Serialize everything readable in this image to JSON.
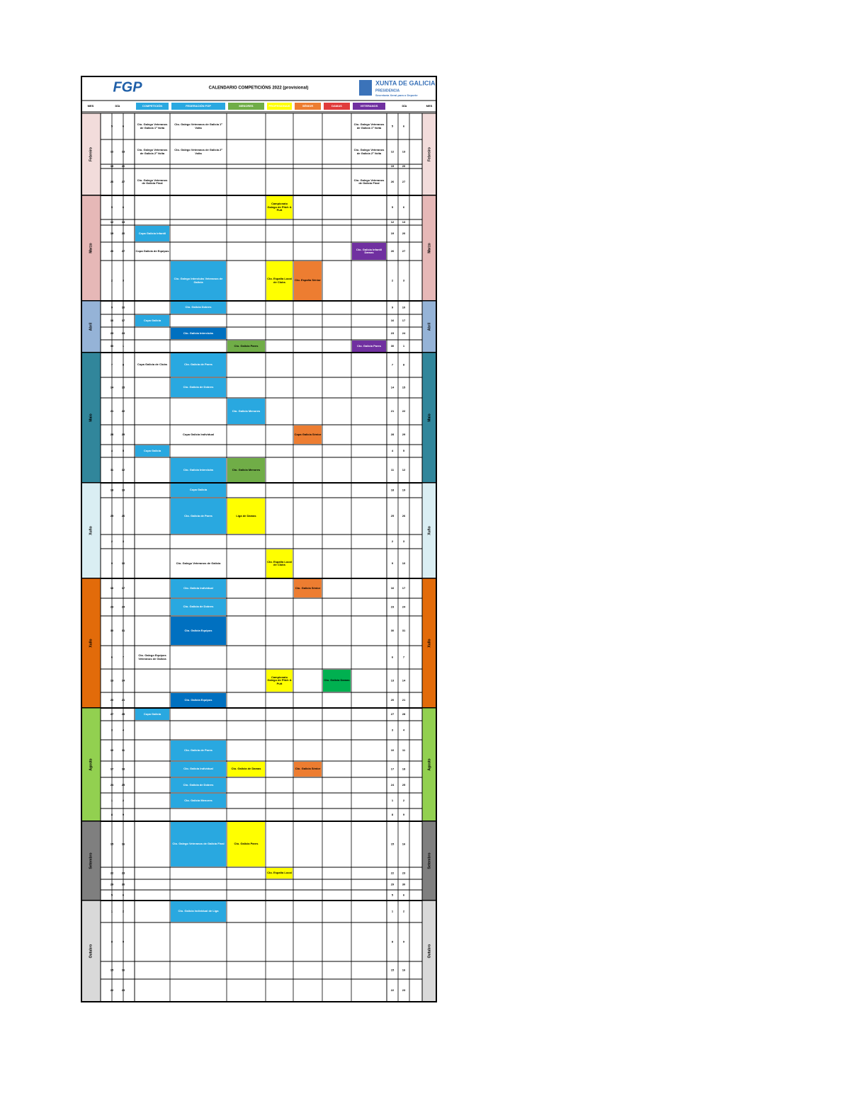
{
  "header": {
    "logo": "FGP",
    "title": "CALENDARIO COMPETICIÓNS 2022 (provisional)",
    "org": "XUNTA DE GALICIA",
    "org_sub": "PRESIDENCIA",
    "org_sub2": "Secretaría Xeral para o Deporte"
  },
  "columns": {
    "month": "MES",
    "days": "DÍA",
    "cols": [
      {
        "name": "COMPETICIÓN",
        "color": "#29a8e0"
      },
      {
        "name": "FEDERACIÓN FGP",
        "color": "#29a8e0"
      },
      {
        "name": "MENORES",
        "color": "#70ad47"
      },
      {
        "name": "PROFESIONAIS",
        "color": "#ffff00"
      },
      {
        "name": "SÉNIOR",
        "color": "#ed7d31"
      },
      {
        "name": "DAMAS",
        "color": "#e03c3c"
      },
      {
        "name": "VETERANOS",
        "color": "#7030a0"
      }
    ]
  },
  "months": [
    {
      "name": "Febreiro",
      "color": "#f2dcdb",
      "rows": [
        {
          "days": [
            "5",
            "6"
          ],
          "events": [
            {
              "col": 0,
              "text": "Cto. Galego Veteranos de Galicia 1ª Volta"
            },
            {
              "col": 1,
              "text": "Cto. Galego Veteranos de Galicia 1ª Volta"
            },
            {
              "col": 6,
              "text": "Cto. Galego Veteranos de Galicia 1ª Volta"
            }
          ]
        },
        {
          "days": [
            "12",
            "13"
          ],
          "events": [
            {
              "col": 0,
              "text": "Cto. Galego Veteranos de Galicia 2ª Volta"
            },
            {
              "col": 1,
              "text": "Cto. Galego Veteranos de Galicia 2ª Volta"
            },
            {
              "col": 6,
              "text": "Cto. Galego Veteranos de Galicia 2ª Volta"
            }
          ]
        },
        {
          "days": [
            "19",
            "20"
          ],
          "events": []
        },
        {
          "days": [
            "26",
            "27"
          ],
          "events": [
            {
              "col": 0,
              "text": "Cto. Galego Veteranos de Galicia Final"
            },
            {
              "col": 6,
              "text": "Cto. Galego Veteranos de Galicia Final"
            }
          ]
        }
      ]
    },
    {
      "name": "Marzo",
      "color": "#e6b8b7",
      "rows": [
        {
          "days": [
            "5",
            "6"
          ],
          "events": [
            {
              "col": 3,
              "text": "Campionato Galego de Pitch & Putt",
              "color": "#ffff00"
            }
          ]
        },
        {
          "days": [
            "12",
            "13"
          ],
          "events": []
        },
        {
          "days": [
            "19",
            "20"
          ],
          "events": [
            {
              "col": 0,
              "text": "Copa Galicia Infantil",
              "color": "#29a8e0"
            }
          ]
        },
        {
          "days": [
            "26",
            "27"
          ],
          "events": [
            {
              "col": 0,
              "text": "Copa Galicia de Equipos"
            },
            {
              "col": 6,
              "text": "Cto. Galicia Infantil Damas",
              "color": "#7030a0"
            }
          ]
        },
        {
          "days": [
            "2",
            "3"
          ],
          "events": [
            {
              "col": 1,
              "text": "Cto. Galego Interclubs Veteranos de Galicia",
              "color": "#29a8e0"
            },
            {
              "col": 3,
              "text": "Cto. España Local de Clubs",
              "color": "#ffff00"
            },
            {
              "col": 4,
              "text": "Cto. España Sénior",
              "color": "#ed7d31"
            }
          ]
        }
      ]
    },
    {
      "name": "Abril",
      "color": "#95b3d7",
      "rows": [
        {
          "days": [
            "9",
            "10"
          ],
          "events": [
            {
              "col": 1,
              "text": "Cto. Galicia Dobres",
              "color": "#29a8e0"
            }
          ]
        },
        {
          "days": [
            "16",
            "17"
          ],
          "events": [
            {
              "col": 0,
              "text": "Copa Galicia",
              "color": "#29a8e0"
            }
          ]
        },
        {
          "days": [
            "23",
            "24"
          ],
          "events": [
            {
              "col": 1,
              "text": "Cto. Galicia Interclubs",
              "color": "#0070c0"
            }
          ]
        },
        {
          "days": [
            "30",
            "1"
          ],
          "events": [
            {
              "col": 2,
              "text": "Cto. Galicia Pares",
              "color": "#70ad47"
            },
            {
              "col": 6,
              "text": "Cto. Galicia Pares",
              "color": "#7030a0"
            }
          ]
        }
      ]
    },
    {
      "name": "Maio",
      "color": "#31869b",
      "rows": [
        {
          "days": [
            "7",
            "8"
          ],
          "events": [
            {
              "col": 0,
              "text": "Copa Galicia de Clubs"
            },
            {
              "col": 1,
              "text": "Cto. Galicia de Pares",
              "color": "#29a8e0"
            }
          ]
        },
        {
          "days": [
            "14",
            "15"
          ],
          "events": [
            {
              "col": 1,
              "text": "Cto. Galicia de Dobres",
              "color": "#29a8e0"
            }
          ]
        },
        {
          "days": [
            "21",
            "22"
          ],
          "events": [
            {
              "col": 2,
              "text": "Cto. Galicia Menores",
              "color": "#29a8e0"
            }
          ]
        },
        {
          "days": [
            "28",
            "29"
          ],
          "events": [
            {
              "col": 1,
              "text": "Copa Galicia Individual"
            },
            {
              "col": 4,
              "text": "Copa Galicia Sénior",
              "color": "#ed7d31"
            }
          ]
        },
        {
          "days": [
            "4",
            "5"
          ],
          "events": [
            {
              "col": 0,
              "text": "Copa Galicia",
              "color": "#29a8e0"
            }
          ]
        },
        {
          "days": [
            "11",
            "12"
          ],
          "events": [
            {
              "col": 1,
              "text": "Cto. Galicia Interclubs",
              "color": "#29a8e0"
            },
            {
              "col": 2,
              "text": "Cto. Galicia Menores",
              "color": "#70ad47"
            }
          ]
        }
      ]
    },
    {
      "name": "Xuño",
      "color": "#daeef3",
      "rows": [
        {
          "days": [
            "18",
            "19"
          ],
          "events": [
            {
              "col": 1,
              "text": "Copa Galicia",
              "color": "#29a8e0"
            }
          ]
        },
        {
          "days": [
            "25",
            "26"
          ],
          "events": [
            {
              "col": 1,
              "text": "Cto. Galicia de Pares",
              "color": "#29a8e0"
            },
            {
              "col": 2,
              "text": "Liga de Damas",
              "color": "#ffff00"
            }
          ]
        },
        {
          "days": [
            "2",
            "3"
          ],
          "events": []
        },
        {
          "days": [
            "9",
            "10"
          ],
          "events": [
            {
              "col": 1,
              "text": "Cto. Galego Veteranos de Galicia"
            },
            {
              "col": 3,
              "text": "Cto. España Local de Clubs",
              "color": "#ffff00"
            }
          ]
        }
      ]
    },
    {
      "name": "Xullo",
      "color": "#e26b0a",
      "rows": [
        {
          "days": [
            "16",
            "17"
          ],
          "events": [
            {
              "col": 1,
              "text": "Cto. Galicia Individual",
              "color": "#29a8e0"
            },
            {
              "col": 4,
              "text": "Cto. Galicia Sénior",
              "color": "#ed7d31"
            }
          ]
        },
        {
          "days": [
            "23",
            "24"
          ],
          "events": [
            {
              "col": 1,
              "text": "Cto. Galicia de Dobres",
              "color": "#29a8e0"
            }
          ]
        },
        {
          "days": [
            "30",
            "31"
          ],
          "events": [
            {
              "col": 1,
              "text": "Cto. Galicia Equipos",
              "color": "#0070c0"
            }
          ]
        },
        {
          "days": [
            "6",
            "7"
          ],
          "events": [
            {
              "col": 0,
              "text": "Cto. Galego Equipos Veteranos de Galicia"
            }
          ]
        },
        {
          "days": [
            "13",
            "14"
          ],
          "events": [
            {
              "col": 3,
              "text": "Campionato Galego de Pitch & Putt",
              "color": "#ffff00"
            },
            {
              "col": 5,
              "text": "Cto. Galicia Damas",
              "color": "#00b050"
            }
          ]
        },
        {
          "days": [
            "20",
            "21"
          ],
          "events": [
            {
              "col": 1,
              "text": "Cto. Galicia Equipos",
              "color": "#0070c0"
            }
          ]
        }
      ]
    },
    {
      "name": "Agosto",
      "color": "#92d050",
      "rows": [
        {
          "days": [
            "27",
            "28"
          ],
          "events": [
            {
              "col": 0,
              "text": "Copa Galicia",
              "color": "#29a8e0"
            }
          ]
        },
        {
          "days": [
            "3",
            "4"
          ],
          "events": []
        },
        {
          "days": [
            "10",
            "11"
          ],
          "events": [
            {
              "col": 1,
              "text": "Cto. Galicia de Pares",
              "color": "#29a8e0"
            }
          ]
        },
        {
          "days": [
            "17",
            "18"
          ],
          "events": [
            {
              "col": 1,
              "text": "Cto. Galicia Individual",
              "color": "#29a8e0"
            },
            {
              "col": 2,
              "text": "Cto. Galicia de Damas",
              "color": "#ffff00"
            },
            {
              "col": 4,
              "text": "Cto. Galicia Sénior",
              "color": "#ed7d31"
            }
          ]
        },
        {
          "days": [
            "24",
            "25"
          ],
          "events": [
            {
              "col": 1,
              "text": "Cto. Galicia de Dobres",
              "color": "#29a8e0"
            }
          ]
        },
        {
          "days": [
            "1",
            "2"
          ],
          "events": [
            {
              "col": 1,
              "text": "Cto. Galicia Menores",
              "color": "#29a8e0"
            }
          ]
        },
        {
          "days": [
            "8",
            "9"
          ],
          "events": []
        }
      ]
    },
    {
      "name": "Setembro",
      "color": "#7f7f7f",
      "rows": [
        {
          "days": [
            "15",
            "16"
          ],
          "events": [
            {
              "col": 1,
              "text": "Cto. Galego Veteranos de Galicia Final",
              "color": "#29a8e0"
            },
            {
              "col": 2,
              "text": "Cto. Galicia Pares",
              "color": "#ffff00"
            }
          ]
        },
        {
          "days": [
            "22",
            "23"
          ],
          "events": [
            {
              "col": 3,
              "text": "Cto. España Local",
              "color": "#ffff00"
            }
          ]
        },
        {
          "days": [
            "29",
            "30"
          ],
          "events": []
        },
        {
          "days": [
            "5",
            "6"
          ],
          "events": []
        }
      ]
    },
    {
      "name": "Outubro",
      "color": "#d9d9d9",
      "rows": [
        {
          "days": [
            "1",
            "2"
          ],
          "events": [
            {
              "col": 1,
              "text": "Cto. Galicia Individual de Liga",
              "color": "#29a8e0"
            }
          ]
        },
        {
          "days": [
            "8",
            "9"
          ],
          "events": []
        },
        {
          "days": [
            "15",
            "16"
          ],
          "events": []
        },
        {
          "days": [
            "22",
            "23"
          ],
          "events": []
        }
      ]
    }
  ]
}
